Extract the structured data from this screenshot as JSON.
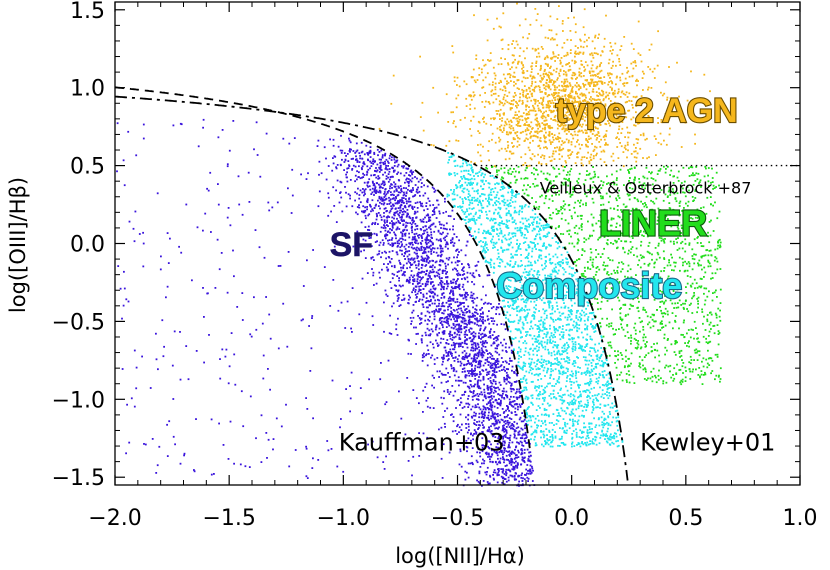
{
  "chart_data": {
    "type": "scatter",
    "title": "",
    "xlabel": "log([NII]/Hα)",
    "ylabel": "log([OIII]/Hβ)",
    "xlim": [
      -2.0,
      1.0
    ],
    "ylim": [
      -1.55,
      1.55
    ],
    "xticks": [
      -2.0,
      -1.5,
      -1.0,
      -0.5,
      0.0,
      0.5,
      1.0
    ],
    "xtick_labels": [
      "−2.0",
      "−1.5",
      "−1.0",
      "−0.5",
      "0.0",
      "0.5",
      "1.0"
    ],
    "yticks": [
      -1.5,
      -1.0,
      -0.5,
      0.0,
      0.5,
      1.0,
      1.5
    ],
    "ytick_labels": [
      "−1.5",
      "−1.0",
      "−0.5",
      "0.0",
      "0.5",
      "1.0",
      "1.5"
    ],
    "grid": false,
    "series": [
      {
        "name": "SF",
        "color": "#3a14dc",
        "label_pos": [
          -1.06,
          -0.08
        ],
        "label_size": 34,
        "label_color": "#1c1466",
        "center": [
          -0.55,
          -0.45
        ],
        "count": 3200,
        "scatter": 0.9
      },
      {
        "name": "Composite",
        "color": "#22e6ee",
        "label_pos": [
          -0.33,
          -0.35
        ],
        "label_size": 36,
        "label_color": "#1a6a8a",
        "center": [
          -0.15,
          -0.1
        ],
        "count": 900,
        "scatter": 0.4
      },
      {
        "name": "LINER",
        "color": "#22dd1c",
        "label_pos": [
          0.12,
          0.05
        ],
        "label_size": 36,
        "label_color": "#0c5a0c",
        "center": [
          0.15,
          0.05
        ],
        "count": 700,
        "scatter": 0.4
      },
      {
        "name": "type 2 AGN",
        "color": "#f5b71d",
        "label_pos": [
          -0.07,
          0.78
        ],
        "label_size": 34,
        "label_color": "#6b4e00",
        "center": [
          0.0,
          0.85
        ],
        "count": 1500,
        "scatter": 0.35
      }
    ],
    "curves": [
      {
        "name": "Kauffman+03",
        "style": "dashed",
        "formula": "0.61/(x-0.05)+1.3",
        "x_max": -0.18,
        "label": "Kauffman+03",
        "label_pos": [
          -1.02,
          -1.33
        ]
      },
      {
        "name": "Kewley+01",
        "style": "dashdot",
        "formula": "0.61/(x-0.47)+1.19",
        "x_max": 0.3,
        "label": "Kewley+01",
        "label_pos": [
          0.3,
          -1.33
        ]
      },
      {
        "name": "Veilleux & Osterbrock +87",
        "style": "dotted",
        "y": 0.5,
        "x_from": -0.42,
        "x_to": 1.0,
        "label": "Veilleux & Osterbrock +87",
        "label_pos": [
          -0.14,
          0.32
        ]
      }
    ]
  }
}
